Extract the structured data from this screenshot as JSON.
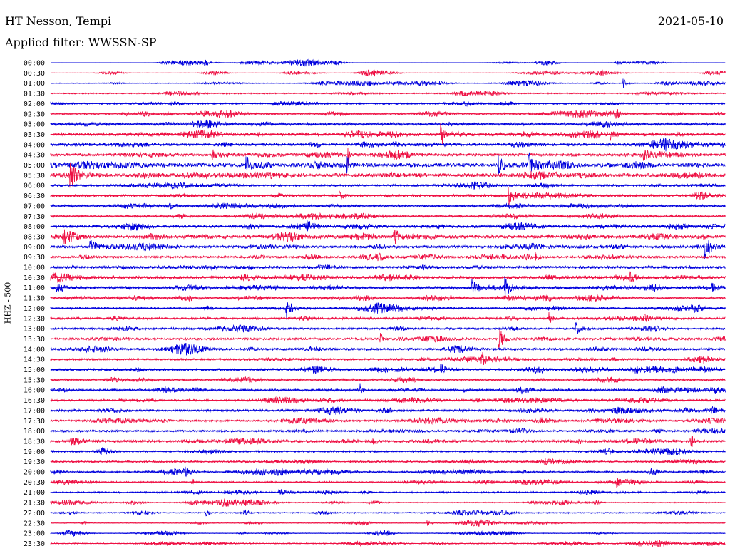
{
  "header": {
    "title": "HT Nesson, Tempi",
    "date": "2021-05-10",
    "filter": "Applied filter: WWSSN-SP"
  },
  "chart_data": {
    "type": "line",
    "ylabel": "HHZ - 500",
    "row_colors": [
      "#0000dd",
      "#ee1144"
    ],
    "row_labels": [
      "00:00",
      "00:30",
      "01:00",
      "01:30",
      "02:00",
      "02:30",
      "03:00",
      "03:30",
      "04:00",
      "04:30",
      "05:00",
      "05:30",
      "06:00",
      "06:30",
      "07:00",
      "07:30",
      "08:00",
      "08:30",
      "09:00",
      "09:30",
      "10:00",
      "10:30",
      "11:00",
      "11:30",
      "12:00",
      "12:30",
      "13:00",
      "13:30",
      "14:00",
      "14:30",
      "15:00",
      "15:30",
      "16:00",
      "16:30",
      "17:00",
      "17:30",
      "18:00",
      "18:30",
      "19:00",
      "19:30",
      "20:00",
      "20:30",
      "21:00",
      "21:30",
      "22:00",
      "22:30",
      "23:00",
      "23:30"
    ],
    "noise_level": [
      0.2,
      0.3,
      0.6,
      1,
      1.2,
      1.4,
      2.2,
      2.4,
      2,
      2.2,
      3,
      2.8,
      1.6,
      2,
      1.8,
      1.8,
      2.2,
      2.6,
      2.2,
      1.8,
      2.2,
      2.4,
      2.4,
      1.6,
      1.6,
      1.8,
      1.6,
      1.8,
      1.8,
      1.6,
      1.8,
      1.6,
      1.8,
      1.6,
      1.8,
      1.6,
      1.6,
      2,
      1.4,
      1.4,
      1.4,
      1.2,
      1.2,
      0.8,
      0.9,
      0.6,
      0.5,
      0.9
    ],
    "events": [
      [
        0,
        0.23,
        3,
        1
      ],
      [
        2,
        0.85,
        6,
        1
      ],
      [
        4,
        0.33,
        3,
        4
      ],
      [
        5,
        0.84,
        5,
        1
      ],
      [
        7,
        0.58,
        14,
        1
      ],
      [
        7,
        0.83,
        6,
        1
      ],
      [
        9,
        0.24,
        6,
        4
      ],
      [
        9,
        0.88,
        5,
        4
      ],
      [
        9,
        0.44,
        30,
        0.3
      ],
      [
        10,
        0.29,
        12,
        2
      ],
      [
        10,
        0.44,
        10,
        1
      ],
      [
        10,
        0.665,
        12,
        2
      ],
      [
        10,
        0.71,
        14,
        2
      ],
      [
        11,
        0.03,
        14,
        2
      ],
      [
        13,
        0.68,
        12,
        2
      ],
      [
        13,
        0.43,
        6,
        1
      ],
      [
        16,
        0.38,
        6,
        2
      ],
      [
        17,
        0.02,
        10,
        2
      ],
      [
        17,
        0.51,
        10,
        2
      ],
      [
        18,
        0.06,
        10,
        2
      ],
      [
        18,
        0.97,
        14,
        2
      ],
      [
        19,
        0.72,
        6,
        1
      ],
      [
        21,
        0.86,
        6,
        2
      ],
      [
        22,
        0.01,
        7,
        2
      ],
      [
        22,
        0.625,
        12,
        2
      ],
      [
        22,
        0.675,
        14,
        1
      ],
      [
        22,
        0.98,
        8,
        2
      ],
      [
        24,
        0.35,
        14,
        1.5
      ],
      [
        25,
        0.74,
        8,
        1
      ],
      [
        25,
        0.88,
        5,
        3
      ],
      [
        26,
        0.78,
        8,
        2
      ],
      [
        27,
        0.49,
        9,
        0.5
      ],
      [
        27,
        0.665,
        20,
        1.5
      ],
      [
        29,
        0.64,
        8,
        0.5
      ],
      [
        30,
        0.58,
        5,
        3
      ],
      [
        32,
        0.46,
        9,
        0.5
      ],
      [
        34,
        0.98,
        5,
        3
      ],
      [
        37,
        0.95,
        10,
        1
      ],
      [
        37,
        0.03,
        6,
        4
      ],
      [
        40,
        0.2,
        5,
        1
      ],
      [
        41,
        0.21,
        8,
        0.5
      ],
      [
        41,
        0.84,
        5,
        1
      ],
      [
        42,
        0.34,
        4,
        4
      ],
      [
        44,
        0.23,
        5,
        1
      ],
      [
        45,
        0.56,
        4,
        1
      ]
    ]
  }
}
